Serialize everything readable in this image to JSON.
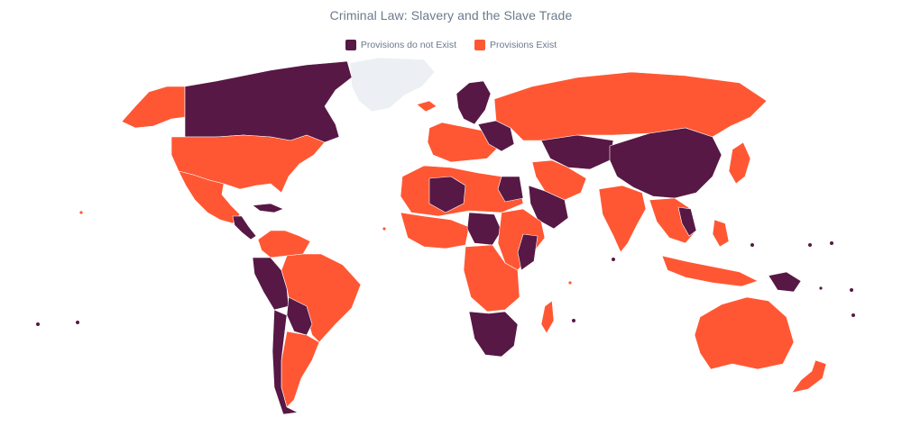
{
  "title": "Criminal Law: Slavery and the Slave Trade",
  "legend": [
    {
      "label": "Provisions do not Exist",
      "color": "#571845"
    },
    {
      "label": "Provisions Exist",
      "color": "#FF5733"
    }
  ],
  "colors": {
    "no_provisions": "#571845",
    "provisions": "#FF5733",
    "no_data": "#eceff3"
  }
}
